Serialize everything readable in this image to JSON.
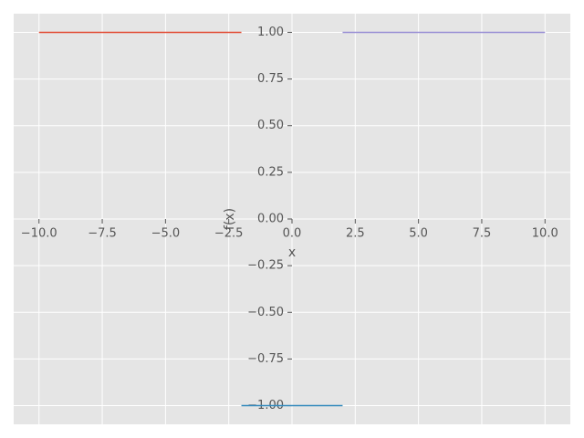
{
  "chart_data": {
    "type": "line",
    "xlabel": "x",
    "ylabel": "f(x)",
    "series": [
      {
        "color": "#E24A33",
        "x": [
          -10,
          -2
        ],
        "values": [
          1,
          1
        ]
      },
      {
        "color": "#348ABD",
        "x": [
          -2,
          2
        ],
        "values": [
          -1,
          -1
        ]
      },
      {
        "color": "#988ED5",
        "x": [
          2,
          10
        ],
        "values": [
          1,
          1
        ]
      }
    ],
    "xlim": [
      -11,
      11
    ],
    "ylim": [
      -1.1,
      1.1
    ],
    "xticks": [
      {
        "value": -10,
        "label": "−10.0"
      },
      {
        "value": -7.5,
        "label": "−7.5"
      },
      {
        "value": -5,
        "label": "−5.0"
      },
      {
        "value": -2.5,
        "label": "−2.5"
      },
      {
        "value": 0,
        "label": "0.0"
      },
      2.5,
      {
        "value": 5,
        "label": "5.0"
      },
      7.5,
      {
        "value": 10,
        "label": "10.0"
      }
    ],
    "yticks": [
      {
        "value": -1,
        "label": "−1.00"
      },
      {
        "value": -0.75,
        "label": "−0.75"
      },
      {
        "value": -0.5,
        "label": "−0.50"
      },
      {
        "value": -0.25,
        "label": "−0.25"
      },
      {
        "value": 0,
        "label": "0.00"
      },
      {
        "value": 0.25,
        "label": "0.25"
      },
      {
        "value": 0.5,
        "label": "0.50"
      },
      {
        "value": 0.75,
        "label": "0.75"
      },
      {
        "value": 1,
        "label": "1.00"
      }
    ],
    "grid": true,
    "background": "#E5E5E5"
  }
}
